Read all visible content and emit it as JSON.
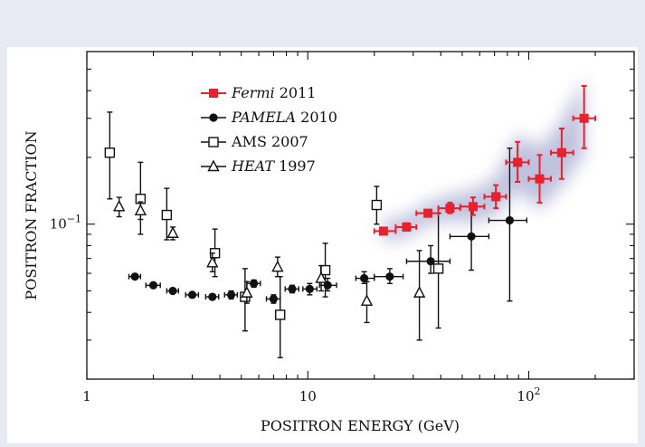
{
  "chart_data": {
    "type": "scatter",
    "title": "",
    "xlabel": "POSITRON ENERGY (GeV)",
    "ylabel": "POSITRON FRACTION",
    "xscale": "log",
    "yscale": "log",
    "xlim": [
      1,
      300
    ],
    "ylim": [
      0.02,
      0.6
    ],
    "x_tick_labels": [
      {
        "value": 1,
        "base": "1",
        "exp": ""
      },
      {
        "value": 10,
        "base": "10",
        "exp": ""
      },
      {
        "value": 100,
        "base": "10",
        "exp": "2"
      }
    ],
    "y_tick_labels": [
      {
        "value": 0.1,
        "base": "10",
        "exp": "−1"
      }
    ],
    "legend_position": "top-left",
    "series": [
      {
        "name_italic": "Fermi",
        "name_rest": " 2011",
        "marker": "square-filled",
        "color": "#e8212e",
        "points": [
          {
            "x": 22,
            "y": 0.093,
            "xlo": 20,
            "xhi": 25,
            "ylo": 0.09,
            "yhi": 0.096
          },
          {
            "x": 28,
            "y": 0.097,
            "xlo": 25,
            "xhi": 31,
            "ylo": 0.094,
            "yhi": 0.101
          },
          {
            "x": 35,
            "y": 0.112,
            "xlo": 31,
            "xhi": 39,
            "ylo": 0.108,
            "yhi": 0.116
          },
          {
            "x": 44,
            "y": 0.118,
            "xlo": 39,
            "xhi": 49,
            "ylo": 0.112,
            "yhi": 0.125
          },
          {
            "x": 56,
            "y": 0.12,
            "xlo": 49,
            "xhi": 63,
            "ylo": 0.11,
            "yhi": 0.132
          },
          {
            "x": 71,
            "y": 0.133,
            "xlo": 63,
            "xhi": 79,
            "ylo": 0.118,
            "yhi": 0.15
          },
          {
            "x": 89,
            "y": 0.19,
            "xlo": 79,
            "xhi": 100,
            "ylo": 0.155,
            "yhi": 0.235
          },
          {
            "x": 112,
            "y": 0.16,
            "xlo": 100,
            "xhi": 126,
            "ylo": 0.125,
            "yhi": 0.205
          },
          {
            "x": 141,
            "y": 0.21,
            "xlo": 126,
            "xhi": 159,
            "ylo": 0.16,
            "yhi": 0.27
          },
          {
            "x": 178,
            "y": 0.3,
            "xlo": 159,
            "xhi": 200,
            "ylo": 0.22,
            "yhi": 0.42
          }
        ]
      },
      {
        "name_italic": "PAMELA",
        "name_rest": " 2010",
        "marker": "circle-filled",
        "color": "#111111",
        "points": [
          {
            "x": 1.65,
            "y": 0.058,
            "xlo": 1.55,
            "xhi": 1.75,
            "ylo": 0.057,
            "yhi": 0.059
          },
          {
            "x": 2.0,
            "y": 0.053,
            "xlo": 1.85,
            "xhi": 2.15,
            "ylo": 0.052,
            "yhi": 0.054
          },
          {
            "x": 2.45,
            "y": 0.05,
            "xlo": 2.3,
            "xhi": 2.6,
            "ylo": 0.049,
            "yhi": 0.051
          },
          {
            "x": 3.0,
            "y": 0.048,
            "xlo": 2.8,
            "xhi": 3.2,
            "ylo": 0.047,
            "yhi": 0.049
          },
          {
            "x": 3.7,
            "y": 0.047,
            "xlo": 3.45,
            "xhi": 3.95,
            "ylo": 0.046,
            "yhi": 0.048
          },
          {
            "x": 4.5,
            "y": 0.048,
            "xlo": 4.2,
            "xhi": 4.8,
            "ylo": 0.046,
            "yhi": 0.05
          },
          {
            "x": 5.7,
            "y": 0.054,
            "xlo": 5.3,
            "xhi": 6.1,
            "ylo": 0.052,
            "yhi": 0.056
          },
          {
            "x": 7.0,
            "y": 0.046,
            "xlo": 6.5,
            "xhi": 7.5,
            "ylo": 0.044,
            "yhi": 0.048
          },
          {
            "x": 8.5,
            "y": 0.051,
            "xlo": 7.9,
            "xhi": 9.1,
            "ylo": 0.049,
            "yhi": 0.053
          },
          {
            "x": 10.2,
            "y": 0.051,
            "xlo": 9.5,
            "xhi": 11.0,
            "ylo": 0.048,
            "yhi": 0.054
          },
          {
            "x": 12.3,
            "y": 0.053,
            "xlo": 11.3,
            "xhi": 13.5,
            "ylo": 0.05,
            "yhi": 0.057
          },
          {
            "x": 18.0,
            "y": 0.057,
            "xlo": 16.5,
            "xhi": 20.0,
            "ylo": 0.054,
            "yhi": 0.061
          },
          {
            "x": 23.5,
            "y": 0.058,
            "xlo": 20.0,
            "xhi": 27.0,
            "ylo": 0.054,
            "yhi": 0.063
          },
          {
            "x": 36.0,
            "y": 0.068,
            "xlo": 28.0,
            "xhi": 44.0,
            "ylo": 0.06,
            "yhi": 0.08
          },
          {
            "x": 55.0,
            "y": 0.088,
            "xlo": 44.0,
            "xhi": 66.0,
            "ylo": 0.062,
            "yhi": 0.12
          },
          {
            "x": 82.0,
            "y": 0.104,
            "xlo": 66.0,
            "xhi": 98.0,
            "ylo": 0.045,
            "yhi": 0.22
          }
        ]
      },
      {
        "name_italic": "",
        "name_rest": "AMS 2007",
        "marker": "square-open",
        "color": "#111111",
        "points": [
          {
            "x": 1.27,
            "y": 0.21,
            "xlo": 1.27,
            "xhi": 1.27,
            "ylo": 0.13,
            "yhi": 0.32
          },
          {
            "x": 1.75,
            "y": 0.13,
            "xlo": 1.75,
            "xhi": 1.75,
            "ylo": 0.09,
            "yhi": 0.19
          },
          {
            "x": 2.3,
            "y": 0.11,
            "xlo": 2.3,
            "xhi": 2.3,
            "ylo": 0.085,
            "yhi": 0.145
          },
          {
            "x": 3.8,
            "y": 0.074,
            "xlo": 3.8,
            "xhi": 3.8,
            "ylo": 0.058,
            "yhi": 0.095
          },
          {
            "x": 5.2,
            "y": 0.047,
            "xlo": 5.2,
            "xhi": 5.2,
            "ylo": 0.033,
            "yhi": 0.063
          },
          {
            "x": 7.5,
            "y": 0.039,
            "xlo": 7.5,
            "xhi": 7.5,
            "ylo": 0.025,
            "yhi": 0.058
          },
          {
            "x": 12.0,
            "y": 0.062,
            "xlo": 12.0,
            "xhi": 12.0,
            "ylo": 0.047,
            "yhi": 0.082
          },
          {
            "x": 20.5,
            "y": 0.122,
            "xlo": 20.5,
            "xhi": 20.5,
            "ylo": 0.1,
            "yhi": 0.148
          },
          {
            "x": 39.0,
            "y": 0.063,
            "xlo": 39.0,
            "xhi": 39.0,
            "ylo": 0.034,
            "yhi": 0.112
          }
        ]
      },
      {
        "name_italic": "HEAT",
        "name_rest": " 1997",
        "marker": "triangle-open",
        "color": "#111111",
        "points": [
          {
            "x": 1.4,
            "y": 0.12,
            "xlo": 1.4,
            "xhi": 1.4,
            "ylo": 0.108,
            "yhi": 0.132
          },
          {
            "x": 1.75,
            "y": 0.115,
            "xlo": 1.75,
            "xhi": 1.75,
            "ylo": 0.105,
            "yhi": 0.126
          },
          {
            "x": 2.45,
            "y": 0.091,
            "xlo": 2.45,
            "xhi": 2.45,
            "ylo": 0.085,
            "yhi": 0.097
          },
          {
            "x": 3.7,
            "y": 0.067,
            "xlo": 3.7,
            "xhi": 3.7,
            "ylo": 0.061,
            "yhi": 0.074
          },
          {
            "x": 5.3,
            "y": 0.049,
            "xlo": 5.3,
            "xhi": 5.3,
            "ylo": 0.044,
            "yhi": 0.055
          },
          {
            "x": 7.3,
            "y": 0.064,
            "xlo": 7.3,
            "xhi": 7.3,
            "ylo": 0.058,
            "yhi": 0.071
          },
          {
            "x": 11.5,
            "y": 0.057,
            "xlo": 11.5,
            "xhi": 11.5,
            "ylo": 0.05,
            "yhi": 0.065
          },
          {
            "x": 18.5,
            "y": 0.045,
            "xlo": 18.5,
            "xhi": 18.5,
            "ylo": 0.036,
            "yhi": 0.055
          },
          {
            "x": 32.0,
            "y": 0.049,
            "xlo": 32.0,
            "xhi": 32.0,
            "ylo": 0.03,
            "yhi": 0.076
          }
        ]
      }
    ]
  }
}
